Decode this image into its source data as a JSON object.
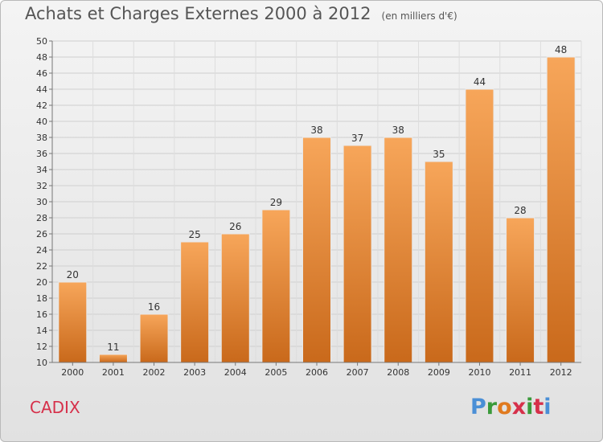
{
  "header": {
    "title": "Achats et Charges Externes 2000 à 2012",
    "subtitle": "(en milliers d'€)"
  },
  "footer": {
    "commune": "CADIX",
    "brand": "Proxiti",
    "brand_colors": [
      "#4a8fd6",
      "#3a9a3a",
      "#e07a1f",
      "#d6304a",
      "#3a9a3a",
      "#d6304a",
      "#4a8fd6"
    ]
  },
  "colors": {
    "bar_light": "#f7a65a",
    "bar_dark": "#c9691b",
    "title": "#555555",
    "commune": "#d6304a"
  },
  "chart_data": {
    "type": "bar",
    "title": "Achats et Charges Externes 2000 à 2012",
    "subtitle": "(en milliers d'€)",
    "categories": [
      "2000",
      "2001",
      "2002",
      "2003",
      "2004",
      "2005",
      "2006",
      "2007",
      "2008",
      "2009",
      "2010",
      "2011",
      "2012"
    ],
    "values": [
      20,
      11,
      16,
      25,
      26,
      29,
      38,
      37,
      38,
      35,
      44,
      28,
      48
    ],
    "ylim": [
      10,
      50
    ],
    "ytick_step": 2,
    "grid": true,
    "data_labels": true
  }
}
